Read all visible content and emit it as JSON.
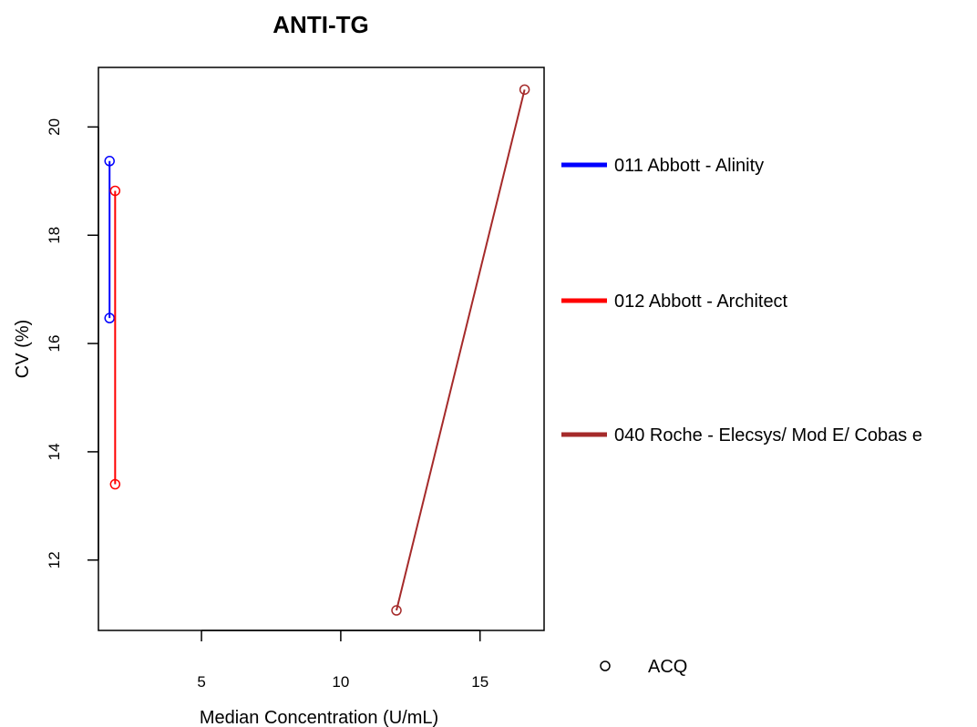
{
  "chart_data": {
    "type": "line",
    "title": "ANTI-TG",
    "xlabel": "Median Concentration  (U/mL)",
    "ylabel": "CV (%)",
    "xlim": [
      1.3,
      17.3
    ],
    "ylim": [
      10.7,
      21.1
    ],
    "x_ticks": [
      5,
      10,
      15
    ],
    "y_ticks": [
      12,
      14,
      16,
      18,
      20
    ],
    "grid": false,
    "series": [
      {
        "name": "011 Abbott - Alinity",
        "color": "#0000ff",
        "points": [
          {
            "x": 1.7,
            "y": 19.37
          },
          {
            "x": 1.7,
            "y": 16.47
          }
        ]
      },
      {
        "name": "012 Abbott - Architect",
        "color": "#ff0000",
        "points": [
          {
            "x": 1.9,
            "y": 18.82
          },
          {
            "x": 1.9,
            "y": 13.4
          }
        ]
      },
      {
        "name": "040 Roche - Elecsys/ Mod E/ Cobas e",
        "color": "#a52a2a",
        "points": [
          {
            "x": 12.0,
            "y": 11.07
          },
          {
            "x": 16.6,
            "y": 20.69
          }
        ]
      }
    ],
    "marker_legend": {
      "label": "ACQ",
      "symbol": "open-circle"
    }
  }
}
